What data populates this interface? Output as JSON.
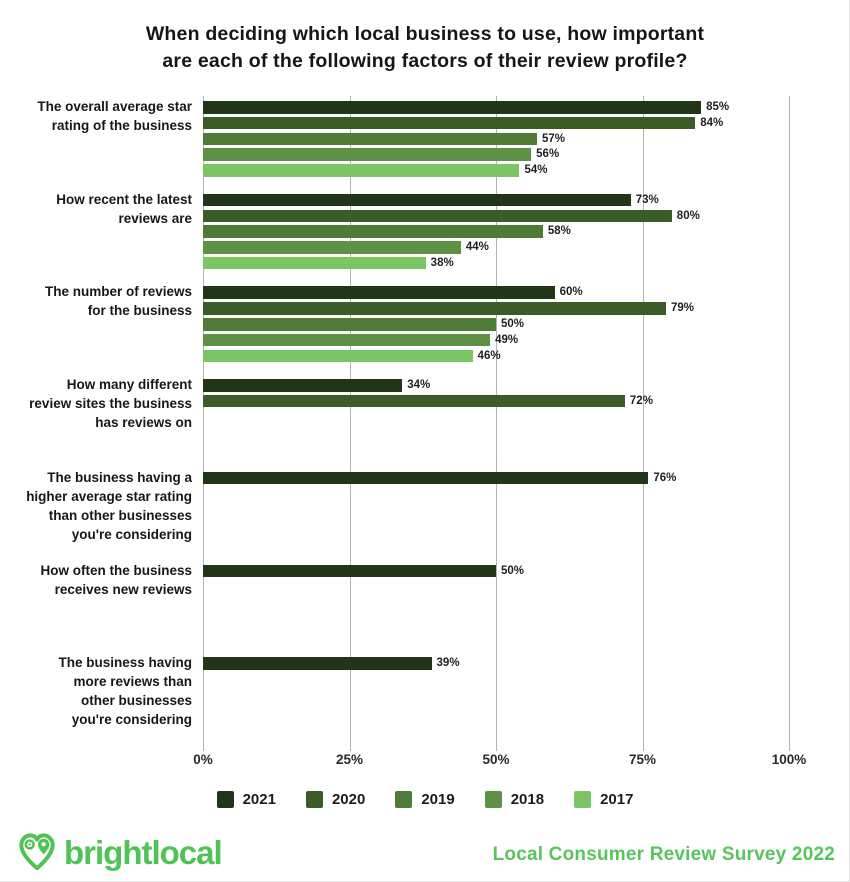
{
  "title": {
    "line1": "When deciding which local business to use, how important",
    "line2": "are each of the following factors of their review profile?"
  },
  "chart_data": {
    "type": "bar",
    "orientation": "horizontal",
    "title": "When deciding which local business to use, how important are each of the following factors of their review profile?",
    "categories": [
      "The overall average star rating of the business",
      "How recent the latest reviews are",
      "The number of reviews for the business",
      "How many different review sites the business has reviews on",
      "The business having a higher average star rating than other businesses you're considering",
      "How often the business receives new reviews",
      "The business having more reviews than other businesses you're considering"
    ],
    "category_label_lines": [
      [
        "The overall average star",
        "rating of the business"
      ],
      [
        "How recent the latest",
        "reviews are"
      ],
      [
        "The number of reviews",
        "for the business"
      ],
      [
        "How many different",
        "review sites the business",
        "has reviews on"
      ],
      [
        "The business having a",
        "higher average star rating",
        "than other businesses",
        "you're considering"
      ],
      [
        "How often the business",
        "receives new reviews"
      ],
      [
        "The business having",
        "more reviews than",
        "other businesses",
        "you're considering"
      ]
    ],
    "series": [
      {
        "name": "2021",
        "color": "#213519",
        "values": [
          85,
          73,
          60,
          34,
          76,
          50,
          39
        ]
      },
      {
        "name": "2020",
        "color": "#3b5c29",
        "values": [
          84,
          80,
          79,
          72,
          null,
          null,
          null
        ]
      },
      {
        "name": "2019",
        "color": "#4e7b38",
        "values": [
          57,
          58,
          50,
          null,
          null,
          null,
          null
        ]
      },
      {
        "name": "2018",
        "color": "#5e9046",
        "values": [
          56,
          44,
          49,
          null,
          null,
          null,
          null
        ]
      },
      {
        "name": "2017",
        "color": "#7cc464",
        "values": [
          54,
          38,
          46,
          null,
          null,
          null,
          null
        ]
      }
    ],
    "xlim": [
      0,
      100
    ],
    "x_ticks": [
      {
        "label": "0%",
        "value": 0
      },
      {
        "label": "25%",
        "value": 25
      },
      {
        "label": "50%",
        "value": 50
      },
      {
        "label": "75%",
        "value": 75
      },
      {
        "label": "100%",
        "value": 100
      }
    ],
    "grid": true,
    "legend_position": "bottom",
    "value_label_suffix": "%"
  },
  "legend": {
    "items": [
      {
        "label": "2021",
        "color": "#213519"
      },
      {
        "label": "2020",
        "color": "#3b5c29"
      },
      {
        "label": "2019",
        "color": "#4e7b38"
      },
      {
        "label": "2018",
        "color": "#5e9046"
      },
      {
        "label": "2017",
        "color": "#7cc464"
      }
    ]
  },
  "footer": {
    "brand": "brightlocal",
    "caption": "Local Consumer Review Survey 2022",
    "accent_color": "#4fc353",
    "caption_color": "#57c55c"
  }
}
